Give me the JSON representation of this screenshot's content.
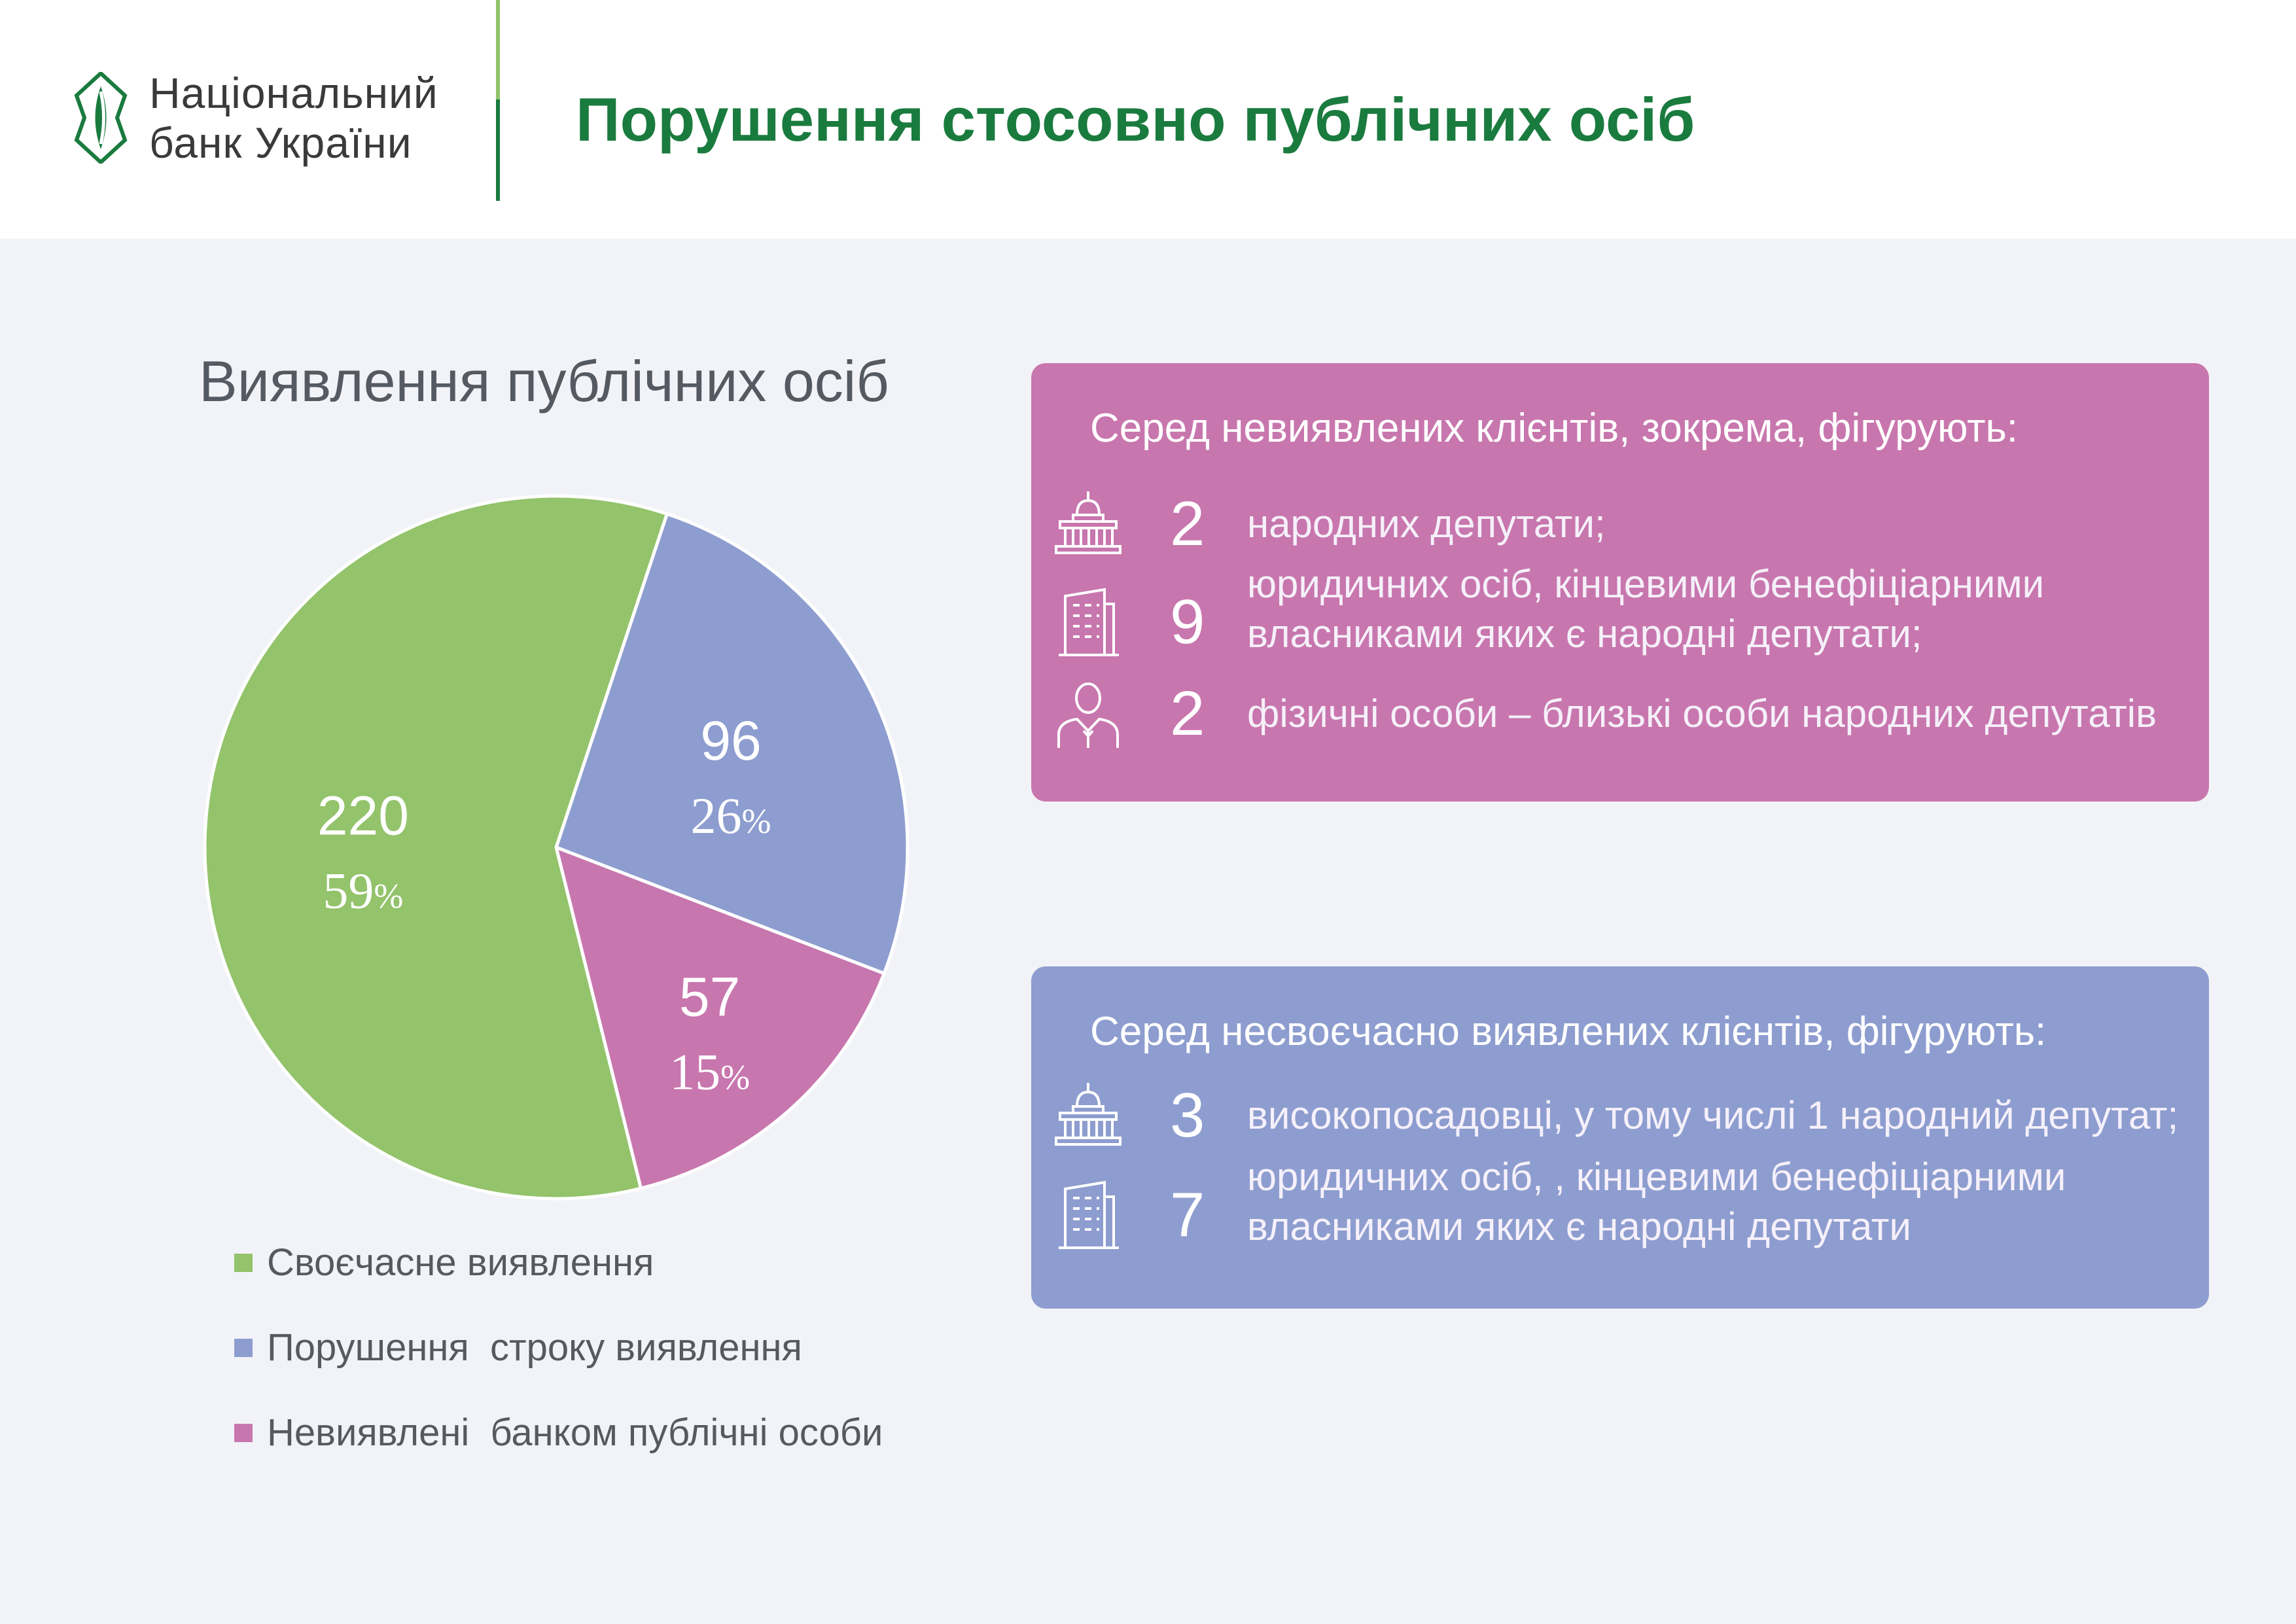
{
  "header": {
    "logo_line1": "Національний",
    "logo_line2": "банк України",
    "title": "Порушення стосовно публічних осіб"
  },
  "colors": {
    "brand_green": "#1a7b3e",
    "accent_green": "#93c36b",
    "timely": "#93c36b",
    "late": "#8e9dcf",
    "undetected": "#c876ae"
  },
  "chart_data": {
    "type": "pie",
    "title": "Виявлення публічних осіб",
    "slices": [
      {
        "label": "Своєчасне виявлення",
        "value": 220,
        "percent": "59",
        "color": "#93c36b"
      },
      {
        "label": "Порушення  строку виявлення",
        "value": 96,
        "percent": "26",
        "color": "#8e9dcf"
      },
      {
        "label": "Невиявлені  банком публічні особи",
        "value": 57,
        "percent": "15",
        "color": "#c876ae"
      }
    ],
    "percent_sign": "%",
    "legend_position": "bottom-left"
  },
  "panels": {
    "undetected": {
      "title": "Серед невиявлених клієнтів, зокрема, фігурують:",
      "rows": [
        {
          "icon": "parliament-icon",
          "number": "2",
          "text": "народних депутати;"
        },
        {
          "icon": "office-building-icon",
          "number": "9",
          "line1": "юридичних осіб, кінцевими бенефіціарними",
          "line2": "власниками яких є народні депутати;"
        },
        {
          "icon": "person-icon",
          "number": "2",
          "text": "фізичні особи – близькі особи народних депутатів"
        }
      ]
    },
    "late": {
      "title": "Серед несвоєчасно виявлених клієнтів, фігурують:",
      "rows": [
        {
          "icon": "parliament-icon",
          "number": "3",
          "text": "високопосадовці, у тому числі 1 народний депутат;"
        },
        {
          "icon": "office-building-icon",
          "number": "7",
          "line1": "юридичних осіб, , кінцевими бенефіціарними",
          "line2": "власниками яких є народні депутати"
        }
      ]
    }
  }
}
